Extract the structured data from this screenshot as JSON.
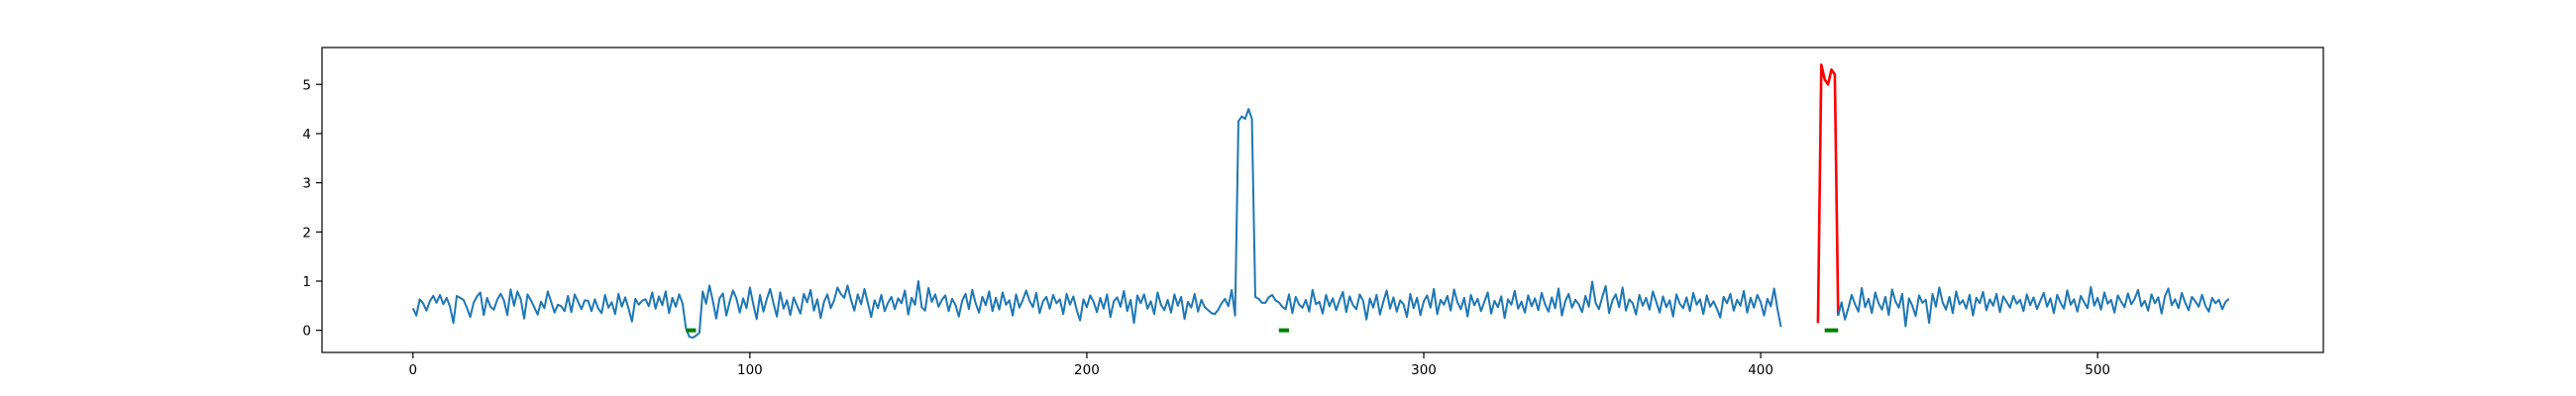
{
  "chart_data": {
    "type": "line",
    "title": "",
    "xlabel": "",
    "ylabel": "",
    "xlim": [
      -27,
      567
    ],
    "ylim": [
      -0.45,
      5.75
    ],
    "xticks": [
      0,
      100,
      200,
      300,
      400,
      500
    ],
    "yticks": [
      0,
      1,
      2,
      3,
      4,
      5
    ],
    "grid": false,
    "legend": "none",
    "colors": {
      "series": "#1f77b4",
      "anomaly": "#ff0000",
      "marker": "#008000",
      "axes": "#000000",
      "background": "#ffffff"
    },
    "series": [
      {
        "values": [
          0.45,
          0.3,
          0.63,
          0.55,
          0.4,
          0.59,
          0.7,
          0.56,
          0.72,
          0.53,
          0.66,
          0.48,
          0.15,
          0.7,
          0.66,
          0.62,
          0.46,
          0.27,
          0.56,
          0.69,
          0.77,
          0.31,
          0.66,
          0.48,
          0.42,
          0.62,
          0.74,
          0.61,
          0.31,
          0.83,
          0.5,
          0.79,
          0.63,
          0.24,
          0.73,
          0.61,
          0.47,
          0.32,
          0.58,
          0.45,
          0.79,
          0.58,
          0.36,
          0.52,
          0.49,
          0.39,
          0.7,
          0.37,
          0.73,
          0.58,
          0.43,
          0.61,
          0.6,
          0.39,
          0.63,
          0.44,
          0.35,
          0.72,
          0.46,
          0.57,
          0.33,
          0.74,
          0.48,
          0.67,
          0.44,
          0.18,
          0.64,
          0.52,
          0.6,
          0.63,
          0.49,
          0.77,
          0.44,
          0.69,
          0.51,
          0.79,
          0.35,
          0.66,
          0.48,
          0.73,
          0.55,
          0.05,
          -0.13,
          -0.15,
          -0.11,
          -0.05,
          0.79,
          0.54,
          0.91,
          0.6,
          0.24,
          0.65,
          0.75,
          0.3,
          0.58,
          0.81,
          0.65,
          0.36,
          0.65,
          0.45,
          0.87,
          0.53,
          0.23,
          0.72,
          0.38,
          0.63,
          0.84,
          0.55,
          0.28,
          0.77,
          0.44,
          0.61,
          0.31,
          0.67,
          0.5,
          0.34,
          0.74,
          0.57,
          0.82,
          0.4,
          0.63,
          0.25,
          0.58,
          0.73,
          0.45,
          0.61,
          0.87,
          0.74,
          0.66,
          0.91,
          0.62,
          0.4,
          0.73,
          0.53,
          0.84,
          0.56,
          0.27,
          0.61,
          0.45,
          0.72,
          0.39,
          0.56,
          0.68,
          0.43,
          0.65,
          0.55,
          0.81,
          0.32,
          0.66,
          0.52,
          1.0,
          0.47,
          0.4,
          0.86,
          0.58,
          0.73,
          0.48,
          0.62,
          0.71,
          0.39,
          0.64,
          0.52,
          0.28,
          0.6,
          0.74,
          0.43,
          0.82,
          0.55,
          0.36,
          0.68,
          0.51,
          0.79,
          0.39,
          0.66,
          0.42,
          0.77,
          0.52,
          0.61,
          0.3,
          0.73,
          0.46,
          0.62,
          0.81,
          0.6,
          0.47,
          0.76,
          0.35,
          0.59,
          0.68,
          0.44,
          0.72,
          0.55,
          0.63,
          0.33,
          0.74,
          0.52,
          0.69,
          0.41,
          0.2,
          0.63,
          0.47,
          0.71,
          0.58,
          0.37,
          0.66,
          0.44,
          0.73,
          0.27,
          0.59,
          0.67,
          0.48,
          0.8,
          0.39,
          0.62,
          0.15,
          0.71,
          0.55,
          0.73,
          0.44,
          0.59,
          0.33,
          0.77,
          0.52,
          0.41,
          0.62,
          0.36,
          0.73,
          0.5,
          0.68,
          0.23,
          0.58,
          0.46,
          0.74,
          0.38,
          0.62,
          0.47,
          0.41,
          0.35,
          0.33,
          0.42,
          0.55,
          0.64,
          0.49,
          0.82,
          0.3,
          4.25,
          4.35,
          4.3,
          4.5,
          4.3,
          0.68,
          0.64,
          0.56,
          0.56,
          0.67,
          0.72,
          0.61,
          0.57,
          0.48,
          0.43,
          0.73,
          0.35,
          0.68,
          0.52,
          0.46,
          0.62,
          0.38,
          0.82,
          0.53,
          0.58,
          0.34,
          0.72,
          0.49,
          0.65,
          0.41,
          0.61,
          0.78,
          0.37,
          0.69,
          0.51,
          0.43,
          0.73,
          0.6,
          0.22,
          0.65,
          0.46,
          0.72,
          0.32,
          0.58,
          0.81,
          0.44,
          0.67,
          0.38,
          0.61,
          0.53,
          0.27,
          0.74,
          0.45,
          0.66,
          0.31,
          0.59,
          0.71,
          0.46,
          0.84,
          0.33,
          0.62,
          0.52,
          0.7,
          0.4,
          0.83,
          0.57,
          0.43,
          0.66,
          0.28,
          0.72,
          0.51,
          0.64,
          0.39,
          0.58,
          0.77,
          0.34,
          0.6,
          0.47,
          0.69,
          0.25,
          0.63,
          0.52,
          0.8,
          0.44,
          0.58,
          0.36,
          0.71,
          0.49,
          0.65,
          0.41,
          0.76,
          0.53,
          0.38,
          0.67,
          0.45,
          0.85,
          0.3,
          0.59,
          0.74,
          0.46,
          0.62,
          0.53,
          0.37,
          0.7,
          0.48,
          0.99,
          0.56,
          0.43,
          0.68,
          0.9,
          0.35,
          0.61,
          0.73,
          0.47,
          0.87,
          0.4,
          0.63,
          0.55,
          0.32,
          0.72,
          0.5,
          0.66,
          0.42,
          0.79,
          0.58,
          0.36,
          0.69,
          0.47,
          0.61,
          0.28,
          0.73,
          0.54,
          0.45,
          0.67,
          0.39,
          0.76,
          0.52,
          0.63,
          0.33,
          0.71,
          0.48,
          0.59,
          0.44,
          0.26,
          0.68,
          0.55,
          0.74,
          0.4,
          0.62,
          0.5,
          0.8,
          0.36,
          0.66,
          0.46,
          0.72,
          0.57,
          0.3,
          0.64,
          0.49,
          0.85,
          0.43,
          0.07
        ],
        "color": "#1f77b4"
      },
      {
        "x": [
          417,
          418,
          419,
          420,
          421,
          422,
          423
        ],
        "values": [
          0.15,
          5.4,
          5.1,
          5.0,
          5.3,
          5.2,
          0.3
        ],
        "color": "#ff0000"
      },
      {
        "x": [
          423,
          424,
          425,
          426,
          427,
          428,
          429,
          430,
          431,
          432,
          433,
          434,
          435,
          436,
          437,
          438,
          439,
          440,
          441,
          442,
          443,
          444,
          445,
          446,
          447,
          448,
          449,
          450,
          451,
          452,
          453,
          454,
          455,
          456,
          457,
          458,
          459,
          460,
          461,
          462,
          463,
          464,
          465,
          466,
          467,
          468,
          469,
          470,
          471,
          472,
          473,
          474,
          475,
          476,
          477,
          478,
          479,
          480,
          481,
          482,
          483,
          484,
          485,
          486,
          487,
          488,
          489,
          490,
          491,
          492,
          493,
          494,
          495,
          496,
          497,
          498,
          499,
          500,
          501,
          502,
          503,
          504,
          505,
          506,
          507,
          508,
          509,
          510,
          511,
          512,
          513,
          514,
          515,
          516,
          517,
          518,
          519,
          520,
          521,
          522,
          523,
          524,
          525,
          526,
          527,
          528,
          529,
          530,
          531,
          532,
          533,
          534,
          535,
          536,
          537,
          538,
          539
        ],
        "values": [
          0.3,
          0.57,
          0.22,
          0.45,
          0.72,
          0.53,
          0.38,
          0.86,
          0.47,
          0.64,
          0.35,
          0.77,
          0.55,
          0.42,
          0.68,
          0.31,
          0.83,
          0.59,
          0.46,
          0.74,
          0.08,
          0.65,
          0.5,
          0.29,
          0.71,
          0.56,
          0.62,
          0.15,
          0.74,
          0.48,
          0.87,
          0.57,
          0.42,
          0.68,
          0.35,
          0.79,
          0.53,
          0.61,
          0.44,
          0.72,
          0.3,
          0.66,
          0.55,
          0.78,
          0.41,
          0.63,
          0.5,
          0.74,
          0.37,
          0.69,
          0.58,
          0.46,
          0.7,
          0.54,
          0.62,
          0.39,
          0.73,
          0.51,
          0.67,
          0.43,
          0.6,
          0.76,
          0.48,
          0.65,
          0.35,
          0.72,
          0.56,
          0.44,
          0.81,
          0.52,
          0.63,
          0.38,
          0.7,
          0.57,
          0.45,
          0.88,
          0.5,
          0.66,
          0.42,
          0.77,
          0.54,
          0.62,
          0.36,
          0.71,
          0.58,
          0.47,
          0.75,
          0.53,
          0.64,
          0.82,
          0.49,
          0.6,
          0.4,
          0.73,
          0.55,
          0.67,
          0.34,
          0.7,
          0.85,
          0.51,
          0.63,
          0.45,
          0.76,
          0.56,
          0.41,
          0.68,
          0.59,
          0.48,
          0.72,
          0.5,
          0.38,
          0.66,
          0.55,
          0.62,
          0.43,
          0.58,
          0.64
        ],
        "color": "#1f77b4"
      }
    ],
    "markers": [
      {
        "x_start": 81,
        "x_end": 84,
        "y": 0,
        "color": "#008000"
      },
      {
        "x_start": 257,
        "x_end": 260,
        "y": 0,
        "color": "#008000"
      },
      {
        "x_start": 419,
        "x_end": 423,
        "y": 0,
        "color": "#008000"
      }
    ]
  }
}
